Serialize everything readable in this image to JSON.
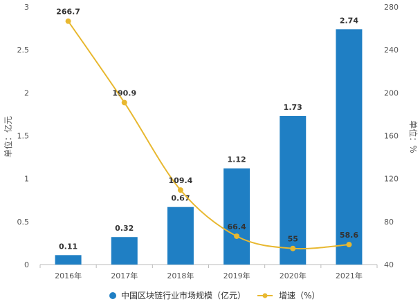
{
  "chart_data": {
    "type": "bar",
    "categories": [
      "2016年",
      "2017年",
      "2018年",
      "2019年",
      "2020年",
      "2021年"
    ],
    "series": [
      {
        "name": "中国区块链行业市场规模（亿元）",
        "type": "bar",
        "axis": "left",
        "color": "#1f7fc4",
        "values": [
          0.11,
          0.32,
          0.67,
          1.12,
          1.73,
          2.74
        ],
        "labels": [
          "0.11",
          "0.32",
          "0.67",
          "1.12",
          "1.73",
          "2.74"
        ]
      },
      {
        "name": "增速（%）",
        "type": "line",
        "axis": "right",
        "color": "#e8b830",
        "values": [
          266.7,
          190.9,
          109.4,
          66.4,
          55,
          58.6
        ],
        "labels": [
          "266.7",
          "190.9",
          "109.4",
          "66.4",
          "55",
          "58.6"
        ]
      }
    ],
    "ylabel_left": "单位：亿元",
    "ylabel_right": "单位：%",
    "ylim_left": [
      0,
      3
    ],
    "yticks_left": [
      0,
      0.5,
      1,
      1.5,
      2,
      2.5,
      3
    ],
    "ytick_labels_left": [
      "0",
      "0.5",
      "1",
      "1.5",
      "2",
      "2.5",
      "3"
    ],
    "ylim_right": [
      40,
      280
    ],
    "yticks_right": [
      40,
      80,
      120,
      160,
      200,
      240,
      280
    ],
    "ytick_labels_right": [
      "40",
      "80",
      "120",
      "160",
      "200",
      "240",
      "280"
    ],
    "legend_position": "bottom",
    "grid": false
  }
}
